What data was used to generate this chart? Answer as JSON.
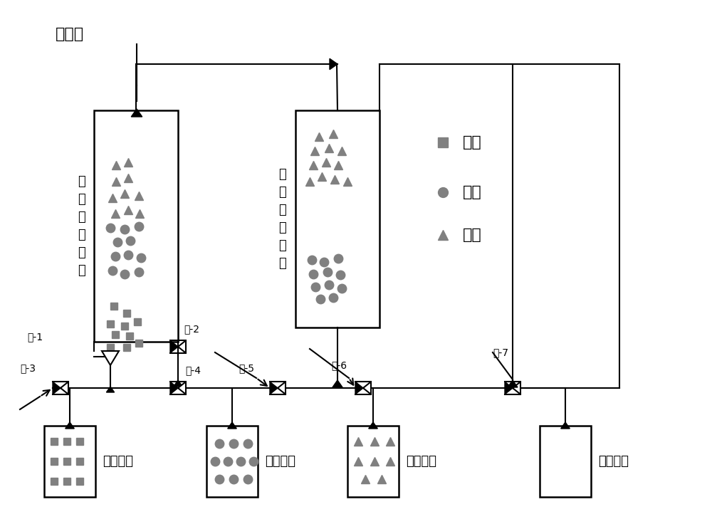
{
  "bg_color": "#ffffff",
  "line_color": "#000000",
  "symbol_color": "#808080",
  "sample_port": "上样口",
  "col1_label": "第\n一\n维\n色\n谱\n柱",
  "col2_label": "第\n二\n维\n色\n谱\n柱",
  "legend_labels": [
    "硫酸",
    "木糖",
    "乙酸"
  ],
  "valve_labels": [
    "阀-1",
    "阀-2",
    "阀-3",
    "阀-4",
    "阀-5",
    "阀-6",
    "阀-7"
  ],
  "tank_labels": [
    "硫酸储罐",
    "木糖储罐",
    "乙酸储罐",
    "纯水储罐"
  ]
}
